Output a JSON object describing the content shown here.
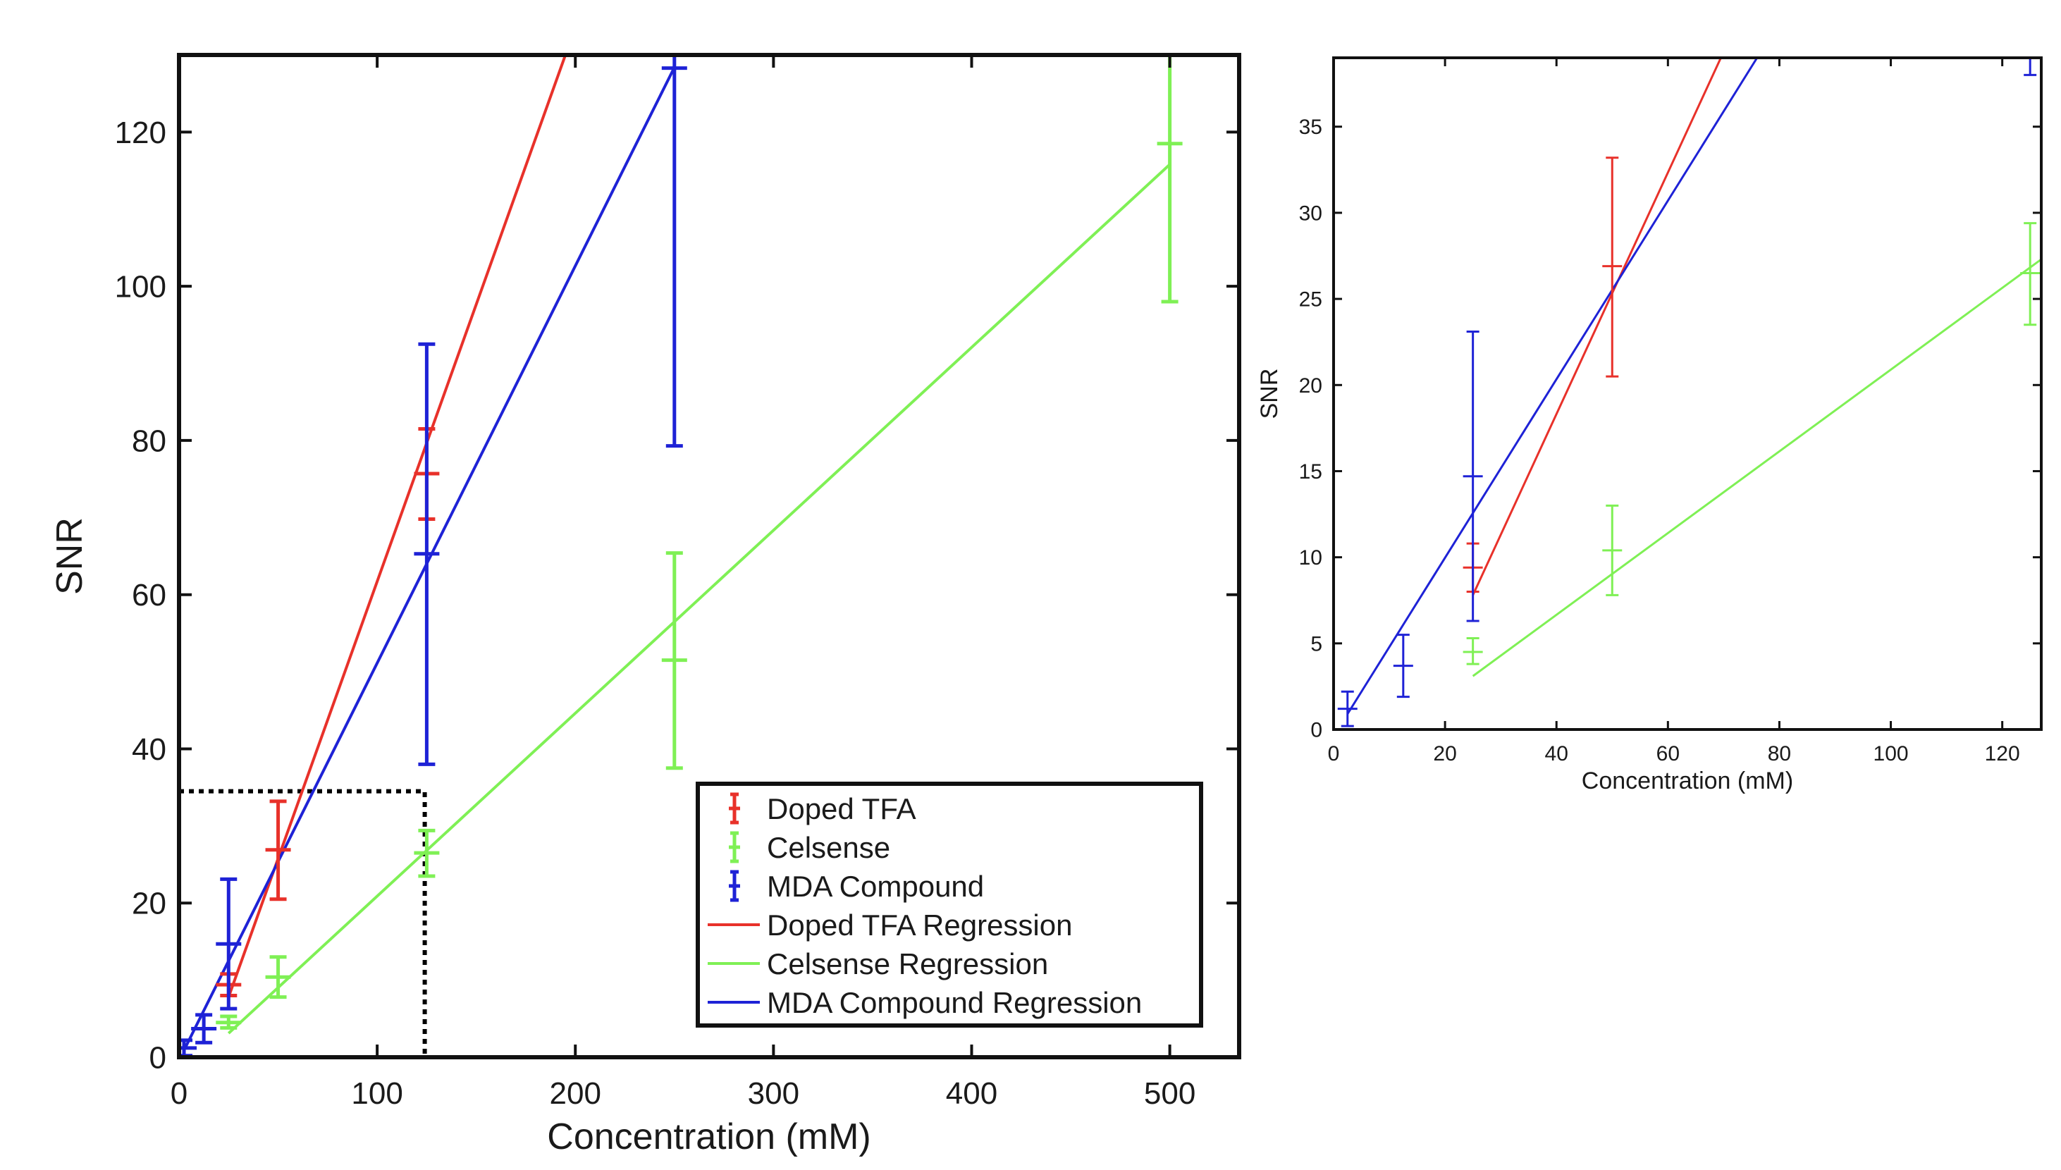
{
  "chart_data": [
    {
      "type": "scatter",
      "panel": "main",
      "xlabel": "Concentration (mM)",
      "ylabel": "SNR",
      "xlim": [
        0,
        535
      ],
      "ylim": [
        0,
        130
      ],
      "xticks": [
        0,
        100,
        200,
        300,
        400,
        500
      ],
      "yticks": [
        0,
        20,
        40,
        60,
        80,
        100,
        120
      ],
      "legend_position": "bottom-right",
      "zoom_box": {
        "x_range": [
          0,
          124
        ],
        "y_range": [
          0,
          34.5
        ],
        "style": "dotted"
      },
      "series": [
        {
          "name": "Doped TFA",
          "kind": "errorbar",
          "color": "#e8312a",
          "points": [
            {
              "x": 25,
              "y": 9.4,
              "lo": 8.0,
              "hi": 10.8
            },
            {
              "x": 50,
              "y": 26.9,
              "lo": 20.5,
              "hi": 33.2
            },
            {
              "x": 125,
              "y": 75.7,
              "lo": 69.8,
              "hi": 81.5
            }
          ]
        },
        {
          "name": "Celsense",
          "kind": "errorbar",
          "color": "#7ff055",
          "points": [
            {
              "x": 25,
              "y": 4.5,
              "lo": 3.8,
              "hi": 5.3
            },
            {
              "x": 50,
              "y": 10.4,
              "lo": 7.8,
              "hi": 13.0
            },
            {
              "x": 125,
              "y": 26.5,
              "lo": 23.5,
              "hi": 29.4
            },
            {
              "x": 250,
              "y": 51.5,
              "lo": 37.5,
              "hi": 65.4
            },
            {
              "x": 500,
              "y": 118.5,
              "lo": 98.0,
              "hi": 130.0
            }
          ]
        },
        {
          "name": "MDA Compound",
          "kind": "errorbar",
          "color": "#1e22d6",
          "points": [
            {
              "x": 2.5,
              "y": 1.2,
              "lo": 0.2,
              "hi": 2.2
            },
            {
              "x": 12.5,
              "y": 3.7,
              "lo": 1.9,
              "hi": 5.5
            },
            {
              "x": 25,
              "y": 14.7,
              "lo": 6.3,
              "hi": 23.1
            },
            {
              "x": 125,
              "y": 65.3,
              "lo": 38.0,
              "hi": 92.5
            },
            {
              "x": 250,
              "y": 128.3,
              "lo": 79.3,
              "hi": 130.0
            }
          ]
        },
        {
          "name": "Doped TFA Regression",
          "kind": "line",
          "color": "#e8312a",
          "x": [
            25,
            195
          ],
          "y": [
            7.8,
            130
          ]
        },
        {
          "name": "Celsense Regression",
          "kind": "line",
          "color": "#7ff055",
          "x": [
            25,
            500
          ],
          "y": [
            3.1,
            115.8
          ]
        },
        {
          "name": "MDA Compound Regression",
          "kind": "line",
          "color": "#1e22d6",
          "x": [
            2.5,
            250
          ],
          "y": [
            0.9,
            128.4
          ]
        }
      ]
    },
    {
      "type": "scatter",
      "panel": "inset",
      "xlabel": "Concentration (mM)",
      "ylabel": "SNR",
      "xlim": [
        0,
        127
      ],
      "ylim": [
        0,
        39
      ],
      "xticks": [
        0,
        20,
        40,
        60,
        80,
        100,
        120
      ],
      "yticks": [
        0,
        5,
        10,
        15,
        20,
        25,
        30,
        35
      ],
      "series": [
        {
          "name": "Doped TFA",
          "kind": "errorbar",
          "color": "#e8312a",
          "points": [
            {
              "x": 25,
              "y": 9.4,
              "lo": 8.0,
              "hi": 10.8
            },
            {
              "x": 50,
              "y": 26.9,
              "lo": 20.5,
              "hi": 33.2
            }
          ]
        },
        {
          "name": "Celsense",
          "kind": "errorbar",
          "color": "#7ff055",
          "points": [
            {
              "x": 25,
              "y": 4.5,
              "lo": 3.8,
              "hi": 5.3
            },
            {
              "x": 50,
              "y": 10.4,
              "lo": 7.8,
              "hi": 13.0
            },
            {
              "x": 125,
              "y": 26.5,
              "lo": 23.5,
              "hi": 29.4
            }
          ]
        },
        {
          "name": "MDA Compound",
          "kind": "errorbar",
          "color": "#1e22d6",
          "points": [
            {
              "x": 2.5,
              "y": 1.2,
              "lo": 0.2,
              "hi": 2.2
            },
            {
              "x": 12.5,
              "y": 3.7,
              "lo": 1.9,
              "hi": 5.5
            },
            {
              "x": 25,
              "y": 14.7,
              "lo": 6.3,
              "hi": 23.1
            },
            {
              "x": 125,
              "y": 39.2,
              "lo": 38.0,
              "hi": 39.2
            }
          ]
        },
        {
          "name": "Doped TFA Regression",
          "kind": "line",
          "color": "#e8312a",
          "x": [
            25,
            69.5
          ],
          "y": [
            7.8,
            39
          ]
        },
        {
          "name": "Celsense Regression",
          "kind": "line",
          "color": "#7ff055",
          "x": [
            25,
            127
          ],
          "y": [
            3.1,
            27.3
          ]
        },
        {
          "name": "MDA Compound Regression",
          "kind": "line",
          "color": "#1e22d6",
          "x": [
            2.5,
            76
          ],
          "y": [
            0.9,
            39
          ]
        }
      ]
    }
  ]
}
